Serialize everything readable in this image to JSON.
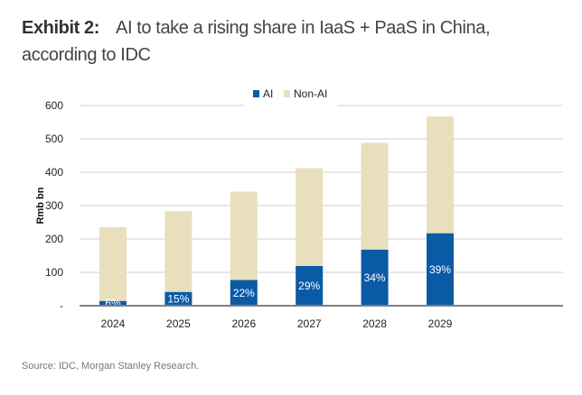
{
  "title": {
    "label": "Exhibit 2:",
    "text": "AI to take a rising share in IaaS + PaaS in China, according to IDC"
  },
  "source": "Source: IDC, Morgan Stanley Research.",
  "colors": {
    "ai": "#0b5aa6",
    "non_ai": "#e8dfbd",
    "grid": "#cfcfcf",
    "axis": "#808080"
  },
  "chart_data": {
    "type": "bar",
    "stacked": true,
    "categories": [
      "2024",
      "2025",
      "2026",
      "2027",
      "2028",
      "2029"
    ],
    "series": [
      {
        "name": "AI",
        "values": [
          14,
          41,
          77,
          119,
          168,
          217
        ],
        "labels": [
          "6%",
          "15%",
          "22%",
          "29%",
          "34%",
          "39%"
        ]
      },
      {
        "name": "Non-AI",
        "values": [
          221,
          242,
          265,
          293,
          320,
          350
        ]
      }
    ],
    "ylabel": "Rmb bn",
    "ylim": [
      0,
      600
    ],
    "yticks": [
      0,
      100,
      200,
      300,
      400,
      500,
      600
    ],
    "ytick_labels": [
      "-",
      "100",
      "200",
      "300",
      "400",
      "500",
      "600"
    ],
    "grid": true,
    "legend": "top-center"
  }
}
